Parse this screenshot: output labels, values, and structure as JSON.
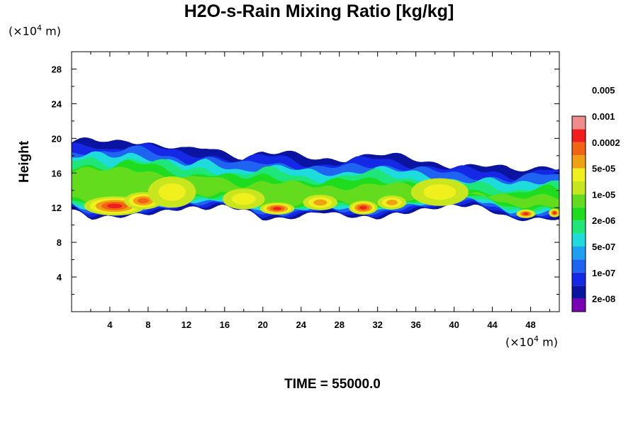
{
  "chart_data": {
    "type": "heatmap",
    "title": "H2O-s-Rain Mixing Ratio [kg/kg]",
    "ylabel": "Height",
    "x_unit": "(×10⁴ m)",
    "y_unit": "(×10⁴ m)",
    "unit_base": "(×10",
    "unit_exp": "4",
    "unit_tail": " m)",
    "footer": "TIME = 55000.0",
    "xlim": [
      0,
      51
    ],
    "ylim": [
      0,
      30
    ],
    "x_ticks": [
      4,
      8,
      12,
      16,
      20,
      24,
      28,
      32,
      36,
      40,
      44,
      48
    ],
    "y_ticks": [
      4,
      8,
      12,
      16,
      20,
      24,
      28
    ],
    "colorbar": {
      "levels": [
        "2e-08",
        "1e-07",
        "5e-07",
        "2e-06",
        "1e-05",
        "5e-05",
        "0.0002",
        "0.001",
        "0.005"
      ],
      "colors": [
        "#7a00b4",
        "#0a14a0",
        "#1428e6",
        "#1e64f0",
        "#1ea0f0",
        "#1edcdc",
        "#1ee678",
        "#1edc1e",
        "#64dc1e",
        "#c8e61e",
        "#f0f01e",
        "#f0a014",
        "#f06414",
        "#f01e1e",
        "#f08c8c"
      ]
    },
    "band_top_profile": {
      "x": [
        0,
        2,
        4,
        6,
        8,
        10,
        12,
        14,
        16,
        18,
        20,
        22,
        24,
        26,
        28,
        30,
        32,
        34,
        36,
        38,
        40,
        42,
        44,
        46,
        48,
        50,
        51
      ],
      "y": [
        19.5,
        19.8,
        19.3,
        19.9,
        19.6,
        19.2,
        18.5,
        18.8,
        18.3,
        18.0,
        18.5,
        18.3,
        17.8,
        17.5,
        17.7,
        18.0,
        18.2,
        17.8,
        17.5,
        17.2,
        17.0,
        16.8,
        16.7,
        16.2,
        16.6,
        17.0,
        16.8
      ]
    },
    "band_bottom_profile": {
      "x": [
        0,
        2,
        4,
        6,
        8,
        10,
        12,
        14,
        16,
        18,
        20,
        22,
        24,
        26,
        28,
        30,
        32,
        34,
        36,
        38,
        40,
        42,
        44,
        46,
        48,
        50,
        51
      ],
      "y": [
        11.8,
        10.8,
        10.9,
        11.1,
        11.3,
        11.6,
        12.0,
        11.9,
        12.2,
        11.8,
        10.7,
        10.7,
        11.0,
        11.6,
        11.2,
        10.9,
        10.8,
        11.3,
        11.6,
        12.0,
        12.2,
        12.3,
        11.6,
        10.7,
        10.6,
        10.8,
        10.6
      ]
    },
    "cores": [
      {
        "x": 4.5,
        "y": 12.2,
        "rx": 3.2,
        "ry": 1.1,
        "level": 4
      },
      {
        "x": 7.5,
        "y": 12.8,
        "rx": 2.0,
        "ry": 1.0,
        "level": 3
      },
      {
        "x": 21.5,
        "y": 11.9,
        "rx": 1.8,
        "ry": 0.7,
        "level": 4
      },
      {
        "x": 30.5,
        "y": 12.0,
        "rx": 1.5,
        "ry": 0.8,
        "level": 4
      },
      {
        "x": 26.0,
        "y": 12.6,
        "rx": 1.8,
        "ry": 0.9,
        "level": 2
      },
      {
        "x": 33.5,
        "y": 12.6,
        "rx": 1.5,
        "ry": 0.8,
        "level": 2
      },
      {
        "x": 47.5,
        "y": 11.3,
        "rx": 1.0,
        "ry": 0.5,
        "level": 4
      },
      {
        "x": 50.5,
        "y": 11.4,
        "rx": 0.6,
        "ry": 0.5,
        "level": 4
      },
      {
        "x": 10.5,
        "y": 13.8,
        "rx": 2.5,
        "ry": 1.8,
        "level": 1
      },
      {
        "x": 18.0,
        "y": 13.0,
        "rx": 2.2,
        "ry": 1.2,
        "level": 1
      },
      {
        "x": 38.5,
        "y": 13.8,
        "rx": 3.0,
        "ry": 1.6,
        "level": 1
      }
    ]
  }
}
